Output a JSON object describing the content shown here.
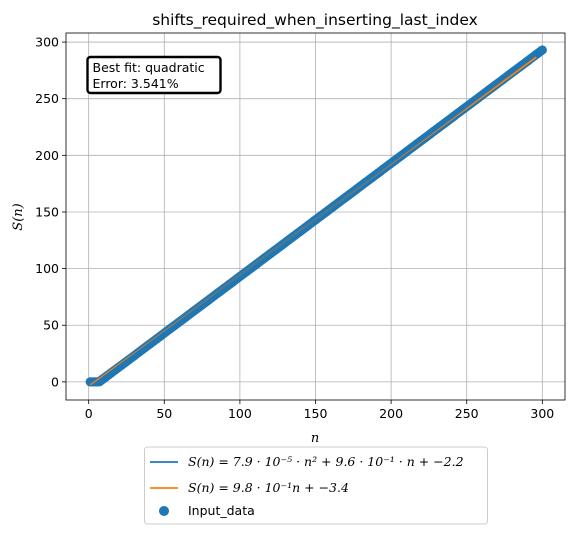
{
  "chart_data": {
    "type": "scatter",
    "title": "shifts_required_when_inserting_last_index",
    "xlabel": "n",
    "ylabel": "S(n)",
    "xlim": [
      -15,
      315
    ],
    "ylim": [
      -16,
      308
    ],
    "xticks": [
      0,
      50,
      100,
      150,
      200,
      250,
      300
    ],
    "yticks": [
      0,
      50,
      100,
      150,
      200,
      250,
      300
    ],
    "grid": true,
    "legend_position": "below-center",
    "annotation": {
      "line1": "Best fit: quadratic",
      "line2": "Error: 3.541%"
    },
    "x_range": [
      1,
      300
    ],
    "series": [
      {
        "name": "S(n) = 7.9 · 10⁻⁵ · n² + 9.6 · 10⁻¹ · n + −2.2",
        "kind": "line",
        "color": "#1f77b4",
        "model": "quadratic",
        "coefficients": [
          7.9e-05,
          0.96,
          -2.2
        ]
      },
      {
        "name": "S(n) = 9.8 · 10⁻¹n + −3.4",
        "kind": "line",
        "color": "#ff7f0e",
        "model": "linear",
        "coefficients": [
          0.98,
          -3.4
        ]
      },
      {
        "name": "Input_data",
        "kind": "scatter",
        "color": "#1f77b4",
        "description": "points approximately S(n) ≈ n − 7 for n = 1..300",
        "x_start": 1,
        "x_end": 300,
        "approx_formula": [
          1.0,
          -7.0
        ]
      }
    ]
  }
}
